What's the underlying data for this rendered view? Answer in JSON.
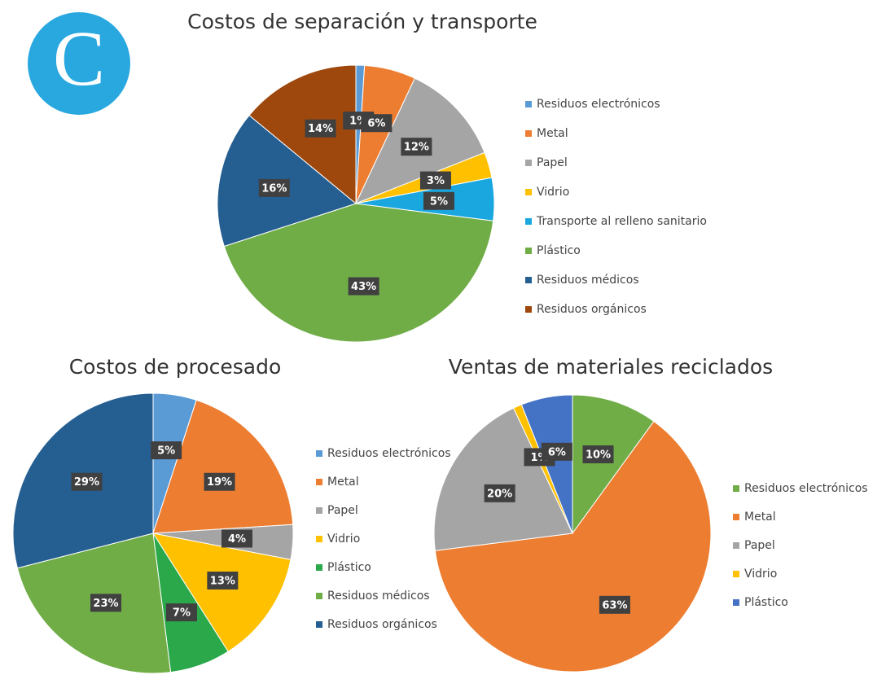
{
  "panel_label": "C",
  "chart_data": [
    {
      "type": "pie",
      "title": "Costos de separación y transporte",
      "categories": [
        "Residuos electrónicos",
        "Metal",
        "Papel",
        "Vidrio",
        "Transporte al relleno sanitario",
        "Plástico",
        "Residuos médicos",
        "Residuos orgánicos"
      ],
      "values": [
        1,
        6,
        12,
        3,
        5,
        43,
        16,
        14
      ],
      "value_labels": [
        "1%",
        "6%",
        "12%",
        "3%",
        "5%",
        "43%",
        "16%",
        "14%"
      ],
      "colors": [
        "#5b9bd5",
        "#ed7d31",
        "#a5a5a5",
        "#ffc000",
        "#1aa7e0",
        "#70ad47",
        "#255e91",
        "#9e480e"
      ],
      "legend": "right"
    },
    {
      "type": "pie",
      "title": "Costos de procesado",
      "categories": [
        "Residuos electrónicos",
        "Metal",
        "Papel",
        "Vidrio",
        "Plástico",
        "Residuos médicos",
        "Residuos orgánicos"
      ],
      "values": [
        5,
        19,
        4,
        13,
        7,
        23,
        29
      ],
      "value_labels": [
        "5%",
        "19%",
        "4%",
        "13%",
        "7%",
        "23%",
        "29%"
      ],
      "colors": [
        "#5b9bd5",
        "#ed7d31",
        "#a5a5a5",
        "#ffc000",
        "#2aa84a",
        "#70ad47",
        "#255e91"
      ],
      "legend": "right"
    },
    {
      "type": "pie",
      "title": "Ventas de materiales reciclados",
      "categories": [
        "Residuos electrónicos",
        "Metal",
        "Papel",
        "Vidrio",
        "Plástico"
      ],
      "values": [
        10,
        63,
        20,
        1,
        6
      ],
      "value_labels": [
        "10%",
        "63%",
        "20%",
        "1%",
        "6%"
      ],
      "colors": [
        "#70ad47",
        "#ed7d31",
        "#a5a5a5",
        "#ffc000",
        "#4472c4"
      ],
      "legend": "right"
    }
  ]
}
